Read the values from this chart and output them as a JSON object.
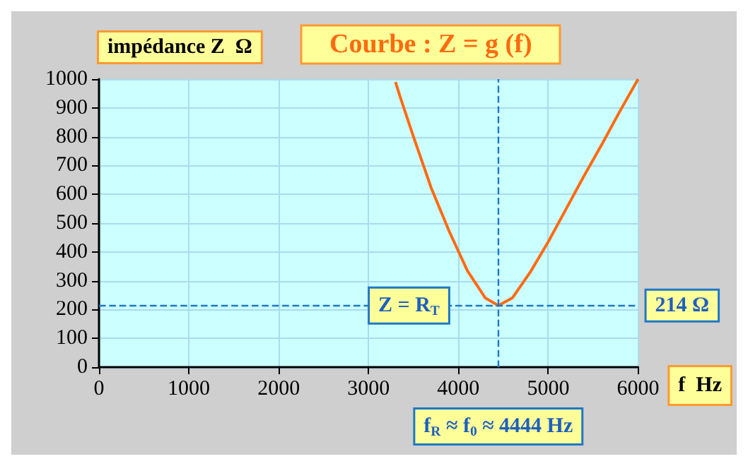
{
  "chart_data": {
    "type": "line",
    "title": "Courbe : Z = g (f)",
    "xlabel": "f  Hz",
    "ylabel": "impédance Z  Ω",
    "x": [
      3300,
      3350,
      3500,
      3700,
      3900,
      4100,
      4300,
      4444,
      4600,
      4800,
      5000,
      5200,
      5400,
      5600,
      5800,
      6000
    ],
    "series": [
      {
        "color": "#ff6a10",
        "values": [
          990,
          940,
          800,
          620,
          470,
          335,
          240,
          214,
          240,
          330,
          435,
          550,
          665,
          775,
          890,
          1000
        ]
      }
    ],
    "xlim": [
      0,
      6000
    ],
    "xticks": [
      0,
      1000,
      2000,
      3000,
      4000,
      5000,
      6000
    ],
    "ylim": [
      0,
      1000
    ],
    "yticks": [
      0,
      100,
      200,
      300,
      400,
      500,
      600,
      700,
      800,
      900,
      1000
    ],
    "grid": true,
    "marker": "none",
    "line_style": "solid",
    "ref_lines": [
      {
        "axis": "y",
        "value": 214,
        "label": "214 Ω",
        "color": "#1f78c8",
        "line_style": "dashed"
      },
      {
        "axis": "x",
        "value": 4444,
        "label": "f$_{R}$ ≈ f$_{0}$ ≈ 4444 Hz",
        "color": "#1f78c8",
        "line_style": "dashed"
      }
    ],
    "annotations": [
      {
        "text": "Z = R$_{T}$",
        "x": 3450,
        "y": 214
      }
    ]
  }
}
